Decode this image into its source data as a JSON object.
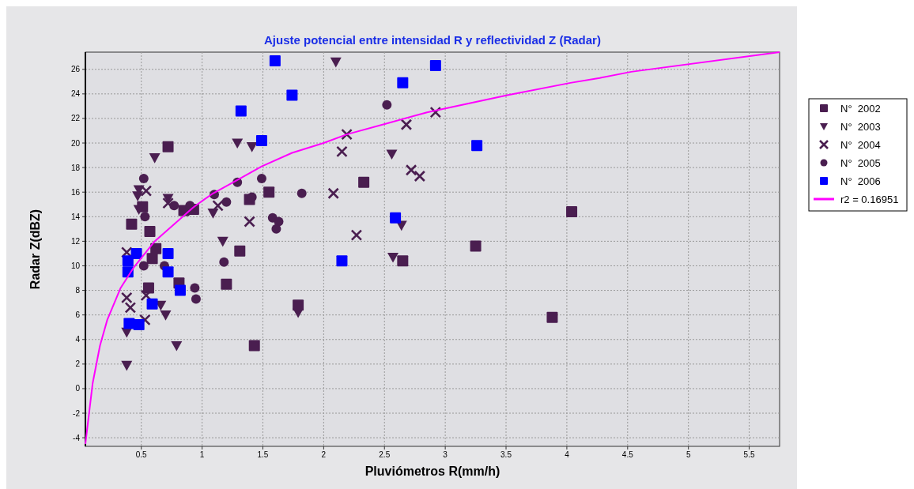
{
  "chart_data": {
    "type": "scatter",
    "title": "Ajuste potencial entre intensidad R y reflectividad Z (Radar)",
    "xlabel": "Pluviómetros R(mm/h)",
    "ylabel": "Radar Z(dBZ)",
    "xlim": [
      0.04,
      5.75
    ],
    "ylim": [
      -4.7,
      27.4
    ],
    "xticks": [
      0.5,
      1,
      1.5,
      2,
      2.5,
      3,
      3.5,
      4,
      4.5,
      5,
      5.5
    ],
    "yticks": [
      -4,
      -2,
      0,
      2,
      4,
      6,
      8,
      10,
      12,
      14,
      16,
      18,
      20,
      22,
      24,
      26
    ],
    "grid": true,
    "legend": "right",
    "series": [
      {
        "name": "N°  2002",
        "color": "#4a1e50",
        "marker": "square",
        "x": [
          0.72,
          0.42,
          0.51,
          0.57,
          0.56,
          0.59,
          0.62,
          0.81,
          0.93,
          0.85,
          1.2,
          1.31,
          1.39,
          1.55,
          1.43,
          1.79,
          2.33,
          2.65,
          3.25,
          3.88,
          4.04
        ],
        "values": [
          19.7,
          13.4,
          14.8,
          12.8,
          8.2,
          10.6,
          11.4,
          8.6,
          14.6,
          14.5,
          8.5,
          11.2,
          15.4,
          16.0,
          3.5,
          6.8,
          16.8,
          10.4,
          11.6,
          5.8,
          14.4
        ]
      },
      {
        "name": "N°  2003",
        "color": "#4a1e50",
        "marker": "triangle",
        "x": [
          0.38,
          0.38,
          0.47,
          0.48,
          0.48,
          0.61,
          0.66,
          0.7,
          0.72,
          0.79,
          1.09,
          1.17,
          1.29,
          1.41,
          1.79,
          2.1,
          2.56,
          2.57,
          2.64
        ],
        "values": [
          4.6,
          1.9,
          15.7,
          16.2,
          14.6,
          18.8,
          6.8,
          6.0,
          15.5,
          3.5,
          14.3,
          12.0,
          20.0,
          19.7,
          6.2,
          26.6,
          19.1,
          10.7,
          13.3
        ]
      },
      {
        "name": "N°  2004",
        "color": "#4a1e50",
        "marker": "cross",
        "x": [
          0.38,
          0.41,
          0.38,
          0.53,
          0.54,
          0.54,
          0.72,
          1.13,
          1.39,
          2.08,
          2.27,
          2.15,
          2.19,
          2.68,
          2.72,
          2.79,
          2.92
        ],
        "values": [
          7.4,
          6.6,
          11.1,
          5.6,
          7.6,
          16.1,
          15.1,
          14.9,
          13.6,
          15.9,
          12.5,
          19.3,
          20.7,
          21.5,
          17.8,
          17.3,
          22.5
        ]
      },
      {
        "name": "N°  2005",
        "color": "#4a1e50",
        "marker": "circle",
        "x": [
          0.52,
          0.53,
          0.52,
          0.69,
          0.94,
          0.95,
          1.18,
          1.1,
          1.2,
          1.29,
          0.77,
          0.9,
          1.49,
          1.41,
          1.82,
          1.58,
          1.63,
          1.61,
          2.52
        ],
        "values": [
          17.1,
          14.0,
          10.0,
          10.0,
          8.2,
          7.3,
          10.3,
          15.8,
          15.2,
          16.8,
          14.9,
          14.9,
          17.1,
          15.6,
          15.9,
          13.9,
          13.6,
          13.0,
          23.1
        ]
      },
      {
        "name": "N°  2006",
        "color": "#0000ff",
        "marker": "square",
        "x": [
          1.6,
          1.74,
          1.32,
          1.49,
          2.65,
          2.92,
          3.26,
          2.59,
          2.15,
          0.46,
          0.39,
          0.39,
          0.72,
          0.72,
          0.82,
          0.59,
          0.4,
          0.48
        ],
        "values": [
          26.7,
          23.9,
          22.6,
          20.2,
          24.9,
          26.3,
          19.8,
          13.9,
          10.4,
          11.0,
          10.4,
          9.5,
          11.0,
          9.5,
          8.0,
          6.9,
          5.3,
          5.2
        ]
      },
      {
        "name": "r2 = 0.16951",
        "type": "line",
        "color": "#ff00ff",
        "marker": "none",
        "line_style": "solid",
        "x": [
          0.04,
          0.1,
          0.16,
          0.22,
          0.33,
          0.44,
          0.61,
          0.92,
          0.96,
          1.09,
          1.31,
          1.49,
          1.74,
          2.0,
          2.19,
          2.52,
          2.85,
          3.51,
          4.03,
          4.27,
          4.53,
          5.75
        ],
        "values": [
          -4.5,
          0.45,
          3.5,
          5.6,
          8.2,
          9.9,
          12.0,
          14.7,
          15.0,
          15.9,
          17.1,
          18.1,
          19.2,
          20.0,
          20.7,
          21.6,
          22.5,
          23.9,
          24.9,
          25.3,
          25.8,
          27.4
        ]
      }
    ]
  }
}
